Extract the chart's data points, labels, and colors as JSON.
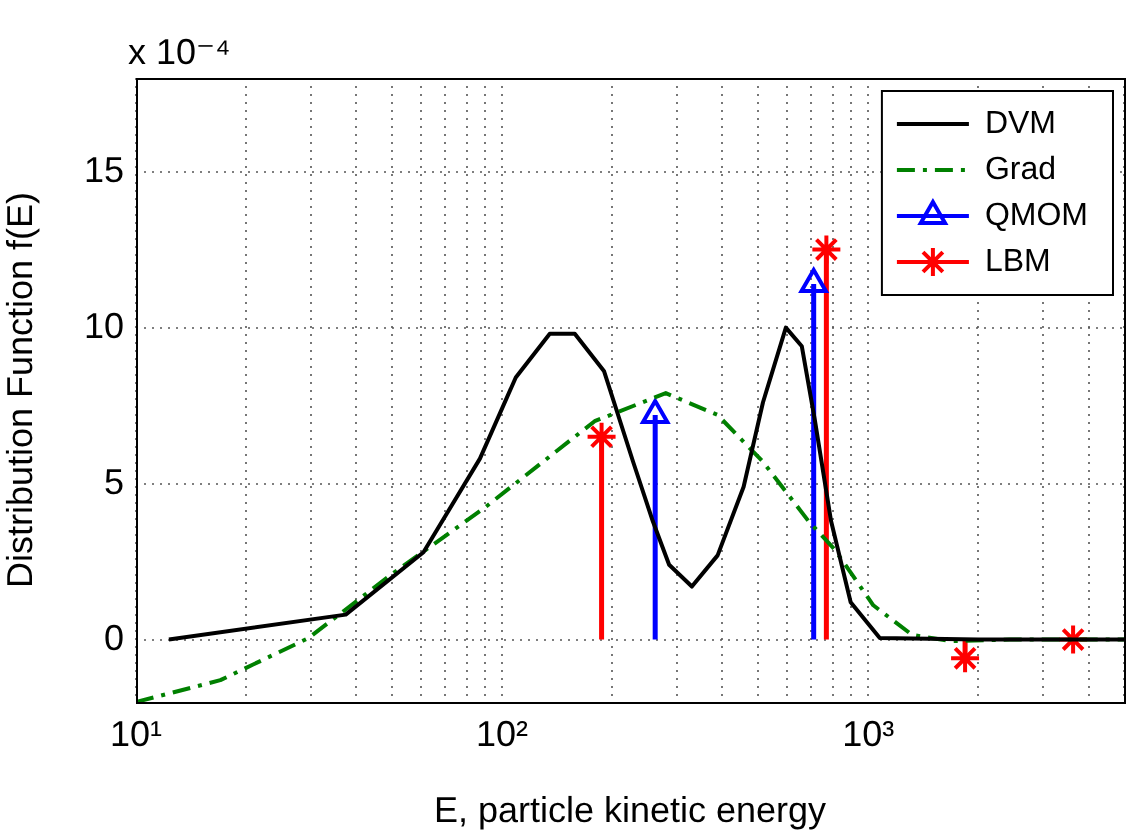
{
  "chart_data": {
    "type": "line",
    "xlabel": "E, particle kinetic energy",
    "ylabel": "Distribution Function f(E)",
    "annotations": [
      "x 10⁻⁴"
    ],
    "log": "x",
    "xlim": [
      10,
      5000
    ],
    "xticks": [
      {
        "value": 10,
        "label": "10¹"
      },
      {
        "value": 100,
        "label": "10²"
      },
      {
        "value": 1000,
        "label": "10³"
      }
    ],
    "ylim": [
      -2,
      18
    ],
    "yticks": [
      0,
      5,
      10,
      15
    ],
    "grid": true,
    "legend": "top right",
    "series": [
      {
        "name": "DVM",
        "type": "line",
        "color": "#000000",
        "line_style": "solid",
        "marker": "none",
        "x": [
          12.3,
          37.4,
          61,
          87,
          109,
          135,
          158,
          190,
          228,
          258,
          286,
          330,
          388,
          457,
          516,
          596,
          659,
          716,
          792,
          896,
          1076,
          2000,
          5000
        ],
        "values": [
          0,
          0.8,
          2.8,
          5.8,
          8.4,
          9.8,
          9.8,
          8.6,
          5.7,
          3.8,
          2.4,
          1.7,
          2.7,
          4.9,
          7.6,
          10,
          9.4,
          7,
          3.8,
          1.2,
          0.05,
          0,
          0
        ]
      },
      {
        "name": "Grad",
        "type": "line",
        "color": "#008000",
        "line_style": "dashed",
        "marker": "none",
        "x": [
          10,
          17,
          29.6,
          50,
          89,
          179,
          280,
          388,
          516,
          687,
          809,
          1033,
          1319,
          1687,
          2434,
          5000
        ],
        "values": [
          -2,
          -1.3,
          0.05,
          2.1,
          4.2,
          7,
          7.9,
          7.2,
          5.7,
          3.8,
          2.9,
          1.1,
          0.15,
          -0.05,
          0,
          0
        ]
      },
      {
        "name": "QMOM",
        "type": "lollipop",
        "color": "#0000ff",
        "marker": "triangle",
        "x": [
          262,
          710
        ],
        "values": [
          7.2,
          11.4
        ]
      },
      {
        "name": "LBM",
        "type": "lollipop",
        "color": "#ff0000",
        "marker": "cross",
        "x": [
          187,
          769,
          1840,
          3630
        ],
        "values": [
          6.5,
          12.5,
          -0.6,
          0
        ]
      }
    ]
  }
}
